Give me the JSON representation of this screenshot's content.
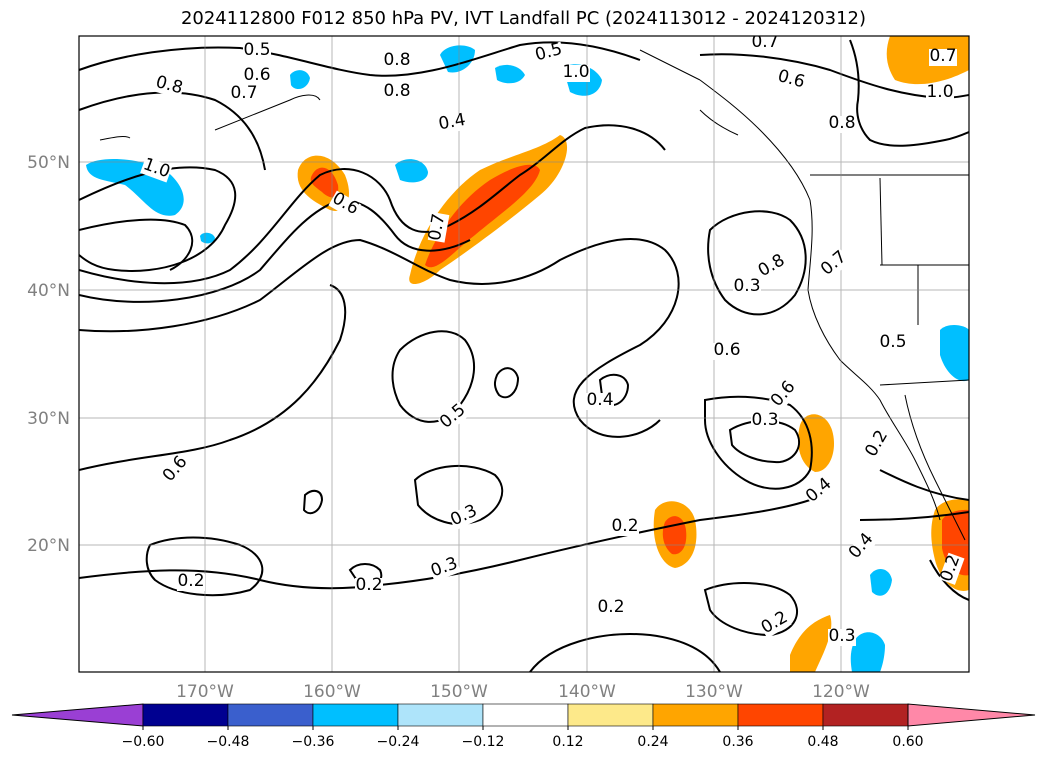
{
  "title": "2024112800 F012 850 hPa PV, IVT Landfall PC (2024113012 - 2024120312)",
  "lat_labels": [
    "50°N",
    "40°N",
    "30°N",
    "20°N"
  ],
  "lon_labels": [
    "170°W",
    "160°W",
    "150°W",
    "140°W",
    "130°W",
    "120°W"
  ],
  "contour_labels": [
    "0.5",
    "0.6",
    "0.8",
    "0.7",
    "1.0",
    "0.8",
    "0.4",
    "0.5",
    "1.0",
    "0.8",
    "0.7",
    "0.6",
    "0.8",
    "0.7",
    "1.0",
    "0.6",
    "0.7",
    "0.3",
    "0.8",
    "0.7",
    "0.6",
    "0.5",
    "0.4",
    "0.6",
    "0.3",
    "0.5",
    "0.4",
    "0.6",
    "0.2",
    "0.3",
    "0.2",
    "0.3",
    "0.2",
    "0.2",
    "0.2",
    "0.2",
    "0.3",
    "0.4",
    "0.2"
  ],
  "colorbar": {
    "ticks": [
      "−0.60",
      "−0.48",
      "−0.36",
      "−0.24",
      "−0.12",
      "0.12",
      "0.24",
      "0.36",
      "0.48",
      "0.60"
    ],
    "colors": [
      "#9a3fd4",
      "#000090",
      "#3a5fcd",
      "#00bfff",
      "#aee4fa",
      "#ffffff",
      "#fde98a",
      "#ffa500",
      "#ff4500",
      "#b22222",
      "#ff88a8"
    ]
  },
  "map": {
    "extent": {
      "lon_min": -180,
      "lon_max": -110,
      "lat_min": 10,
      "lat_max": 60
    },
    "positive_color": "#ffa500",
    "strong_positive_color": "#ff4500",
    "negative_color": "#00bfff"
  }
}
